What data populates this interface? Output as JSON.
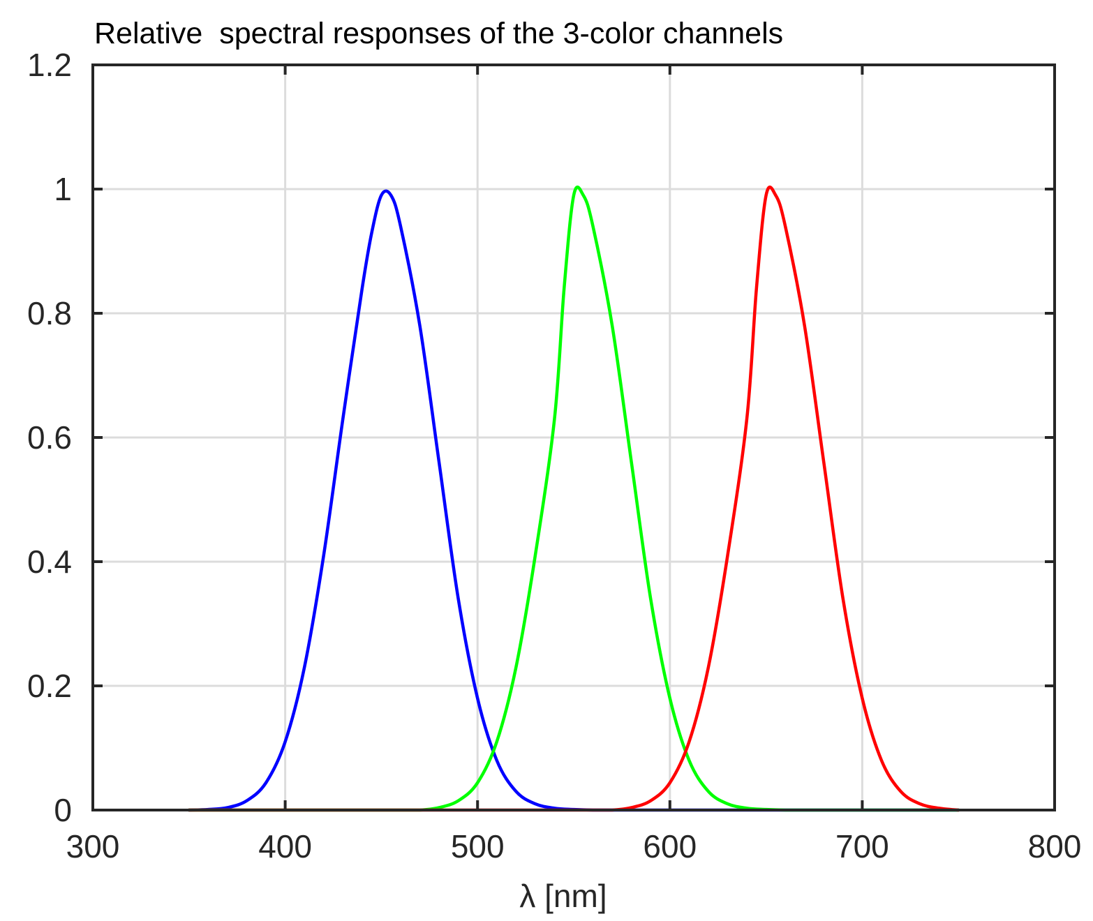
{
  "chart_data": {
    "type": "line",
    "title": "Relative  spectral responses of the 3-color channels",
    "xlabel": "λ [nm]",
    "ylabel": "",
    "xlim": [
      300,
      800
    ],
    "ylim": [
      0,
      1.2
    ],
    "xticks": [
      300,
      400,
      500,
      600,
      700,
      800
    ],
    "yticks": [
      0,
      0.2,
      0.4,
      0.6,
      0.8,
      1,
      1.2
    ],
    "xtick_labels": [
      "300",
      "400",
      "500",
      "600",
      "700",
      "800"
    ],
    "ytick_labels": [
      "0",
      "0.2",
      "0.4",
      "0.6",
      "0.8",
      "1",
      "1.2"
    ],
    "grid": true,
    "legend": "none",
    "series": [
      {
        "color": "#0000ff",
        "x": [
          350,
          360,
          370,
          380,
          390,
          400,
          410,
          420,
          430,
          440,
          445,
          450,
          455,
          460,
          470,
          480,
          490,
          500,
          510,
          520,
          530,
          540,
          550,
          560,
          570,
          580,
          590,
          600,
          610,
          620,
          630,
          640,
          650,
          660,
          670,
          680,
          690,
          700,
          710,
          720,
          730,
          740,
          750
        ],
        "y": [
          0.0,
          0.001,
          0.004,
          0.015,
          0.044,
          0.11,
          0.23,
          0.41,
          0.63,
          0.84,
          0.93,
          0.99,
          0.99,
          0.94,
          0.78,
          0.56,
          0.34,
          0.18,
          0.08,
          0.03,
          0.01,
          0.003,
          0.001,
          0.0,
          0.0,
          0.0,
          0.0,
          0.0,
          0.0,
          0.0,
          0.0,
          0.0,
          0.0,
          0.0,
          0.0,
          0.0,
          0.0,
          0.0,
          0.0,
          0.0,
          0.0,
          0.0,
          0.0
        ]
      },
      {
        "color": "#00ff00",
        "x": [
          350,
          360,
          370,
          380,
          390,
          400,
          410,
          420,
          430,
          440,
          450,
          460,
          470,
          480,
          490,
          500,
          510,
          520,
          530,
          540,
          545,
          550,
          555,
          560,
          570,
          580,
          590,
          600,
          610,
          620,
          630,
          640,
          650,
          660,
          670,
          680,
          690,
          700,
          710,
          720,
          730,
          740,
          750
        ],
        "y": [
          0.0,
          0.0,
          0.0,
          0.0,
          0.0,
          0.0,
          0.0,
          0.0,
          0.0,
          0.0,
          0.0,
          0.0,
          0.0,
          0.004,
          0.015,
          0.044,
          0.11,
          0.23,
          0.41,
          0.63,
          0.84,
          0.99,
          0.99,
          0.94,
          0.78,
          0.56,
          0.34,
          0.18,
          0.08,
          0.03,
          0.01,
          0.003,
          0.001,
          0.0,
          0.0,
          0.0,
          0.0,
          0.0,
          0.0,
          0.0,
          0.0,
          0.0,
          0.0
        ]
      },
      {
        "color": "#ff0000",
        "x": [
          350,
          360,
          370,
          380,
          390,
          400,
          410,
          420,
          430,
          440,
          450,
          460,
          470,
          480,
          490,
          500,
          510,
          520,
          530,
          540,
          550,
          560,
          570,
          580,
          590,
          600,
          610,
          620,
          630,
          640,
          645,
          650,
          655,
          660,
          670,
          680,
          690,
          700,
          710,
          720,
          730,
          740,
          750
        ],
        "y": [
          0.0,
          0.0,
          0.0,
          0.0,
          0.0,
          0.0,
          0.0,
          0.0,
          0.0,
          0.0,
          0.0,
          0.0,
          0.0,
          0.0,
          0.0,
          0.0,
          0.0,
          0.0,
          0.0,
          0.0,
          0.0,
          0.0,
          0.0,
          0.004,
          0.015,
          0.044,
          0.11,
          0.23,
          0.41,
          0.63,
          0.84,
          0.99,
          0.99,
          0.94,
          0.78,
          0.56,
          0.34,
          0.18,
          0.08,
          0.03,
          0.01,
          0.003,
          0.0
        ]
      }
    ]
  }
}
